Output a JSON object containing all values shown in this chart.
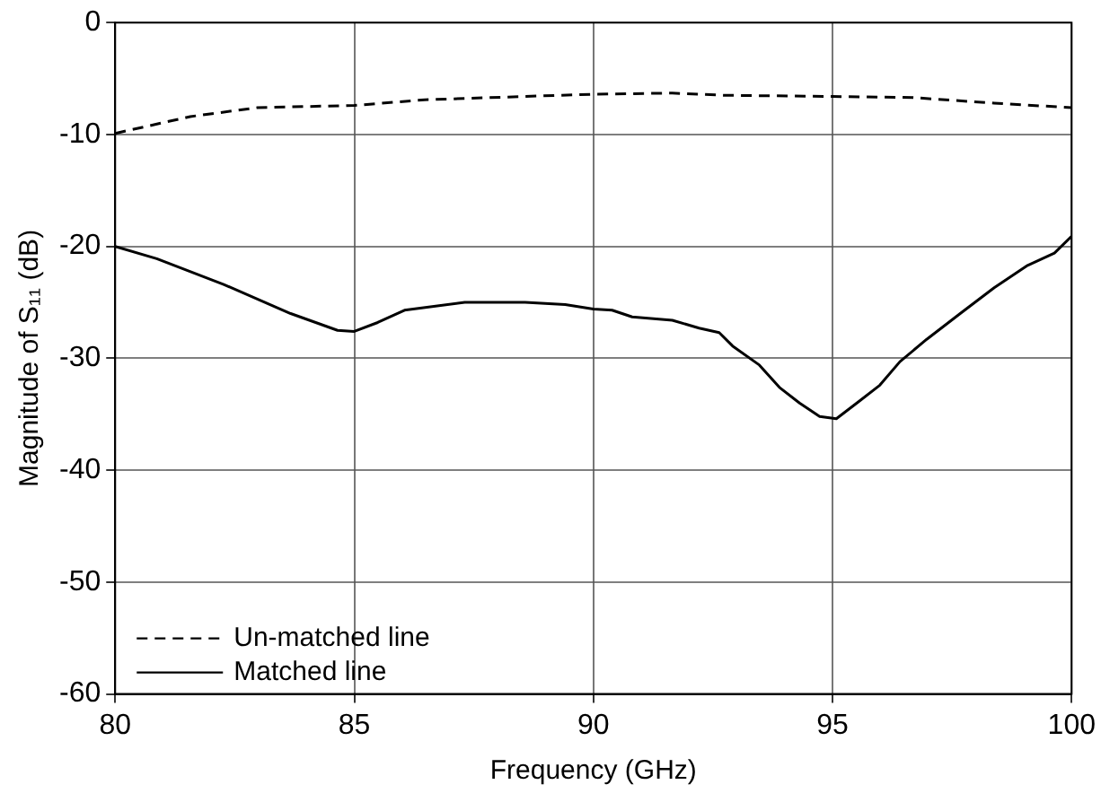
{
  "chart_data": {
    "type": "line",
    "xlabel": "Frequency (GHz)",
    "ylabel": "Magnitude of S₁₁ (dB)",
    "xlim": [
      80,
      100
    ],
    "ylim": [
      -60,
      0
    ],
    "xticks": [
      80,
      85,
      90,
      95,
      100
    ],
    "yticks": [
      -60,
      -50,
      -40,
      -30,
      -20,
      -10,
      0
    ],
    "grid": true,
    "legend": "bottom left",
    "series": [
      {
        "name": "Un-matched line",
        "color": "#000000",
        "line_style": "dashed",
        "x": [
          80,
          81.57,
          82.97,
          85,
          86.47,
          88.57,
          90,
          91.65,
          92.77,
          95,
          96.69,
          98.38,
          100
        ],
        "values": [
          -9.9,
          -8.4,
          -7.6,
          -7.4,
          -6.9,
          -6.6,
          -6.4,
          -6.3,
          -6.5,
          -6.6,
          -6.7,
          -7.2,
          -7.6
        ]
      },
      {
        "name": "Matched line",
        "color": "#000000",
        "line_style": "solid",
        "x": [
          80,
          80.87,
          82.27,
          83.67,
          84.65,
          85,
          85.49,
          86.05,
          87.31,
          88.57,
          89.41,
          90,
          90.39,
          90.81,
          91.65,
          92.21,
          92.63,
          92.91,
          93.47,
          93.89,
          94.31,
          94.73,
          95.08,
          95.57,
          95.99,
          96.41,
          96.97,
          97.67,
          98.38,
          99.08,
          99.64,
          100
        ],
        "values": [
          -20,
          -21.1,
          -23.4,
          -26,
          -27.5,
          -27.6,
          -26.8,
          -25.7,
          -25,
          -25,
          -25.2,
          -25.6,
          -25.7,
          -26.3,
          -26.6,
          -27.3,
          -27.7,
          -28.9,
          -30.6,
          -32.6,
          -34,
          -35.2,
          -35.4,
          -33.8,
          -32.4,
          -30.3,
          -28.3,
          -26,
          -23.7,
          -21.7,
          -20.6,
          -19.1
        ]
      }
    ]
  }
}
